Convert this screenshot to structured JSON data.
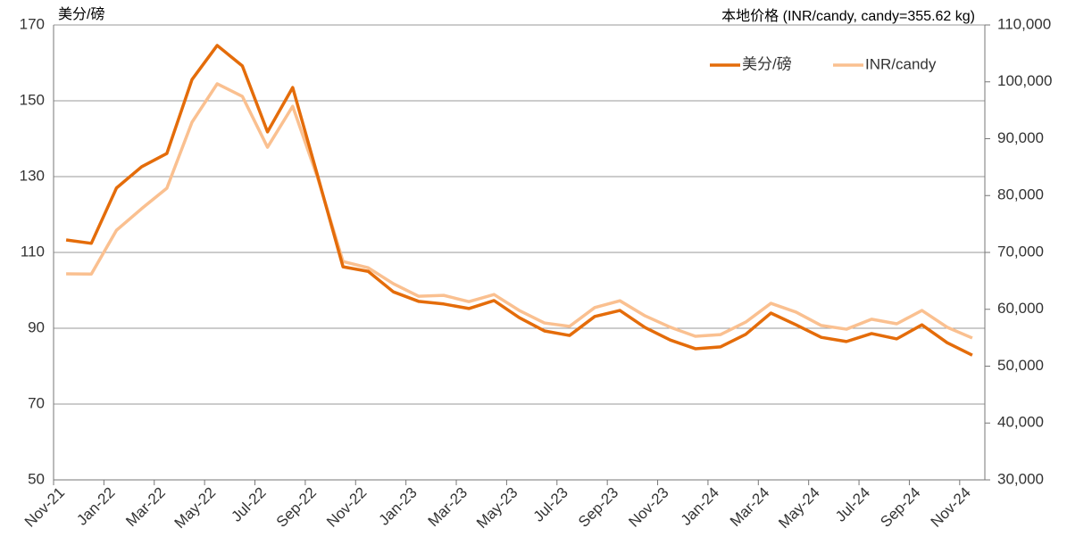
{
  "chart_data": {
    "type": "line",
    "y_label": "美分/磅",
    "y2_label": "本地价格 (INR/candy, candy=355.62 kg)",
    "categories": [
      "Nov-21",
      null,
      "Jan-22",
      null,
      "Mar-22",
      null,
      "May-22",
      null,
      "Jul-22",
      null,
      "Sep-22",
      null,
      "Nov-22",
      null,
      "Jan-23",
      null,
      "Mar-23",
      null,
      "May-23",
      null,
      "Jul-23",
      null,
      "Sep-23",
      null,
      "Nov-23",
      null,
      "Jan-24",
      null,
      "Mar-24",
      null,
      "May-24",
      null,
      "Jul-24",
      null,
      "Sep-24",
      null,
      "Nov-24"
    ],
    "series": [
      {
        "name": "美分/磅",
        "color": "#e46c0a",
        "values": [
          113.3,
          112.4,
          127,
          132.6,
          136.1,
          155.6,
          164.6,
          159.2,
          141.8,
          153.5,
          130,
          106.2,
          105,
          99.6,
          97.1,
          96.4,
          95.2,
          97.3,
          92.8,
          89.3,
          88.1,
          93.1,
          94.7,
          90.2,
          86.9,
          84.6,
          85.1,
          88.4,
          94,
          90.9,
          87.6,
          86.5,
          88.6,
          87.2,
          90.9,
          86.2,
          82.9
        ]
      },
      {
        "name": "INR/candy",
        "color": "#fac090",
        "axis": "y2",
        "values": [
          66235,
          66200,
          73900,
          77700,
          81300,
          92900,
          99650,
          97450,
          88500,
          95700,
          83000,
          68400,
          67300,
          64500,
          62300,
          62450,
          61350,
          62600,
          59800,
          57600,
          57000,
          60300,
          61500,
          58850,
          56850,
          55250,
          55550,
          57750,
          61050,
          59500,
          57150,
          56500,
          58250,
          57450,
          59800,
          56850,
          54950
        ]
      }
    ],
    "ylim": [
      50,
      170
    ],
    "yticks": [
      50,
      70,
      90,
      110,
      130,
      150,
      170
    ],
    "y2lim": [
      30000,
      110000
    ],
    "y2ticks": [
      {
        "value": 30000,
        "label": "30,000"
      },
      {
        "value": 40000,
        "label": "40,000"
      },
      {
        "value": 50000,
        "label": "50,000"
      },
      {
        "value": 60000,
        "label": "60,000"
      },
      {
        "value": 70000,
        "label": "70,000"
      },
      {
        "value": 80000,
        "label": "80,000"
      },
      {
        "value": 90000,
        "label": "90,000"
      },
      {
        "value": 100000,
        "label": "100,000"
      },
      {
        "value": 110000,
        "label": "110,000"
      }
    ],
    "grid": true,
    "legend": "upper right"
  }
}
